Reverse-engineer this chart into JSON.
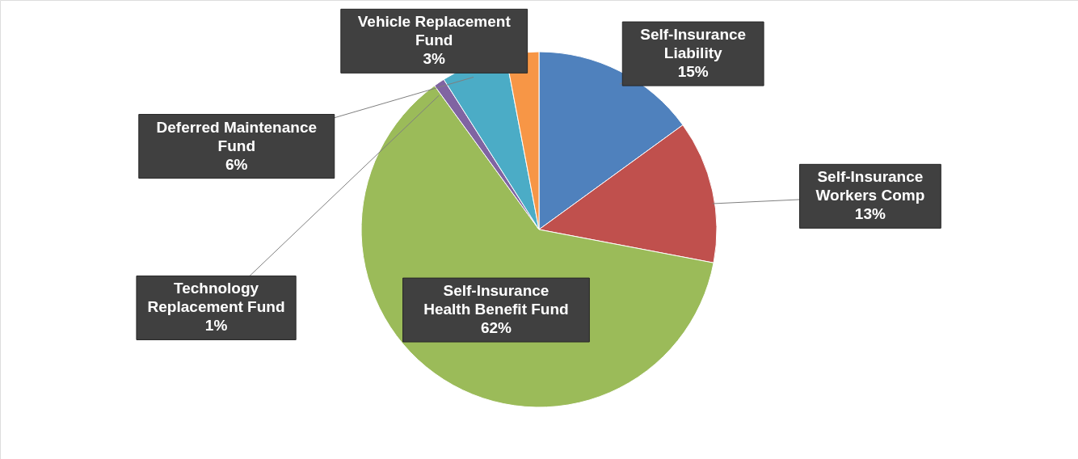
{
  "chart_data": {
    "type": "pie",
    "categories": [
      "Self-Insurance Liability",
      "Self-Insurance Workers Comp",
      "Self-Insurance Health Benefit Fund",
      "Technology Replacement Fund",
      "Deferred Maintenance Fund",
      "Vehicle Replacement Fund"
    ],
    "values": [
      15,
      13,
      62,
      1,
      6,
      3
    ],
    "colors": [
      "#4f81bd",
      "#c0504d",
      "#9bbb59",
      "#8064a2",
      "#4bacc6",
      "#f79646"
    ],
    "value_labels": [
      "15%",
      "13%",
      "62%",
      "1%",
      "6%",
      "3%"
    ]
  }
}
